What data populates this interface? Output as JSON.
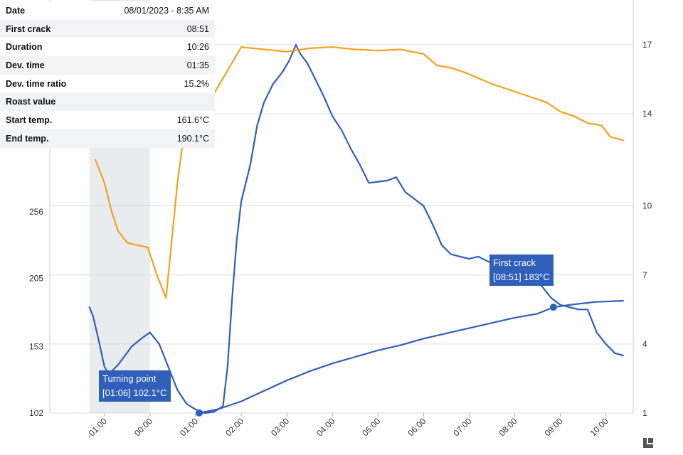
{
  "info": [
    {
      "label": "Date",
      "value": "08/01/2023 - 8:35 AM"
    },
    {
      "label": "First crack",
      "value": "08:51"
    },
    {
      "label": "Duration",
      "value": "10:26"
    },
    {
      "label": "Dev. time",
      "value": "01:35"
    },
    {
      "label": "Dev. time ratio",
      "value": "15.2%"
    },
    {
      "label": "Roast value",
      "value": ""
    },
    {
      "label": "Start temp.",
      "value": "161.6°C"
    },
    {
      "label": "End temp.",
      "value": "190.1°C"
    }
  ],
  "annotations": {
    "turning_point": {
      "title": "Turning point",
      "detail": "[01:06] 102.1°C"
    },
    "first_crack": {
      "title": "First crack",
      "detail": "[08:51] 183°C"
    }
  },
  "colors": {
    "bean_temp": "#2f5fb9",
    "ror": "#2f5fb9",
    "power": "#f5a11c",
    "shade": "#e9ecef",
    "grid": "#dddddd"
  },
  "chart_data": {
    "type": "line",
    "x_unit": "minutes",
    "x_ticks": [
      "-01:00",
      "00:00",
      "01:00",
      "02:00",
      "03:00",
      "04:00",
      "05:00",
      "06:00",
      "07:00",
      "08:00",
      "09:00",
      "10:00"
    ],
    "x_tick_values": [
      -1,
      0,
      1,
      2,
      3,
      4,
      5,
      6,
      7,
      8,
      9,
      10
    ],
    "xlim": [
      -2.2,
      10.6
    ],
    "y_left_ticks": [
      "102",
      "153",
      "205",
      "256"
    ],
    "y_left_tick_values": [
      102,
      153,
      205,
      256
    ],
    "ylim_left": [
      102,
      384
    ],
    "y_right_ticks": [
      "1",
      "4",
      "7",
      "10",
      "14",
      "17"
    ],
    "y_right_tick_values": [
      1,
      4,
      7,
      10,
      14,
      17
    ],
    "ylim_right": [
      1,
      17
    ],
    "grid": true,
    "shaded_region": [
      -1.33,
      0
    ],
    "series": [
      {
        "axis": "left",
        "color": "#2f5fb9",
        "points": [
          [
            1.08,
            102.1
          ],
          [
            1.5,
            105
          ],
          [
            2,
            111
          ],
          [
            2.5,
            119
          ],
          [
            3,
            127
          ],
          [
            3.5,
            134
          ],
          [
            4,
            140
          ],
          [
            4.5,
            145
          ],
          [
            5,
            150
          ],
          [
            5.5,
            154
          ],
          [
            6,
            159
          ],
          [
            6.5,
            163
          ],
          [
            7,
            167
          ],
          [
            7.5,
            171
          ],
          [
            8,
            175
          ],
          [
            8.5,
            178
          ],
          [
            8.85,
            183
          ],
          [
            9.25,
            185
          ],
          [
            9.75,
            187
          ],
          [
            10.38,
            188
          ]
        ]
      },
      {
        "axis": "right",
        "color": "#2f5fb9",
        "points": [
          [
            -1.33,
            5.6
          ],
          [
            -1.25,
            5.2
          ],
          [
            -1.12,
            4.1
          ],
          [
            -1.0,
            3.0
          ],
          [
            -0.9,
            2.7
          ],
          [
            -0.7,
            3.1
          ],
          [
            -0.4,
            3.9
          ],
          [
            -0.15,
            4.3
          ],
          [
            0,
            4.5
          ],
          [
            0.2,
            4.0
          ],
          [
            0.4,
            3.0
          ],
          [
            0.6,
            2.0
          ],
          [
            0.8,
            1.4
          ],
          [
            1.0,
            1.15
          ],
          [
            1.2,
            1.0
          ],
          [
            1.4,
            1.05
          ],
          [
            1.6,
            1.3
          ],
          [
            1.7,
            3.0
          ],
          [
            1.8,
            6.0
          ],
          [
            1.9,
            8.5
          ],
          [
            2.0,
            10.2
          ],
          [
            2.2,
            11.8
          ],
          [
            2.35,
            13.5
          ],
          [
            2.5,
            14.5
          ],
          [
            2.7,
            15.3
          ],
          [
            2.9,
            15.8
          ],
          [
            3.05,
            16.3
          ],
          [
            3.2,
            17.0
          ],
          [
            3.3,
            16.6
          ],
          [
            3.45,
            16.2
          ],
          [
            3.6,
            15.6
          ],
          [
            3.8,
            14.8
          ],
          [
            4.0,
            13.9
          ],
          [
            4.2,
            13.3
          ],
          [
            4.4,
            12.5
          ],
          [
            4.6,
            11.8
          ],
          [
            4.8,
            11.0
          ],
          [
            5.0,
            11.05
          ],
          [
            5.2,
            11.1
          ],
          [
            5.4,
            11.25
          ],
          [
            5.6,
            10.6
          ],
          [
            5.8,
            10.3
          ],
          [
            6.0,
            10.0
          ],
          [
            6.2,
            9.2
          ],
          [
            6.4,
            8.3
          ],
          [
            6.6,
            7.9
          ],
          [
            6.8,
            7.8
          ],
          [
            7.0,
            7.7
          ],
          [
            7.2,
            7.8
          ],
          [
            7.4,
            7.6
          ],
          [
            7.6,
            7.4
          ],
          [
            7.8,
            7.2
          ],
          [
            8.0,
            6.9
          ],
          [
            8.2,
            7.0
          ],
          [
            8.4,
            6.9
          ],
          [
            8.6,
            6.5
          ],
          [
            8.8,
            6.0
          ],
          [
            9.0,
            5.7
          ],
          [
            9.2,
            5.6
          ],
          [
            9.4,
            5.5
          ],
          [
            9.6,
            5.5
          ],
          [
            9.8,
            4.5
          ],
          [
            10.0,
            4.0
          ],
          [
            10.2,
            3.6
          ],
          [
            10.38,
            3.5
          ]
        ]
      },
      {
        "axis": "right",
        "color": "#f5a11c",
        "points": [
          [
            -1.2,
            12.0
          ],
          [
            -1.0,
            11.0
          ],
          [
            -0.85,
            9.8
          ],
          [
            -0.7,
            8.9
          ],
          [
            -0.5,
            8.4
          ],
          [
            -0.3,
            8.3
          ],
          [
            -0.05,
            8.2
          ],
          [
            0.15,
            7.0
          ],
          [
            0.35,
            6.0
          ],
          [
            0.5,
            9.0
          ],
          [
            0.6,
            11.0
          ],
          [
            0.7,
            12.5
          ],
          [
            2.0,
            16.9
          ],
          [
            2.5,
            16.8
          ],
          [
            3.0,
            16.7
          ],
          [
            3.5,
            16.85
          ],
          [
            4.0,
            16.9
          ],
          [
            4.5,
            16.8
          ],
          [
            5.0,
            16.75
          ],
          [
            5.5,
            16.8
          ],
          [
            6.0,
            16.6
          ],
          [
            6.3,
            16.1
          ],
          [
            6.6,
            16.0
          ],
          [
            6.9,
            15.8
          ],
          [
            7.2,
            15.55
          ],
          [
            7.5,
            15.3
          ],
          [
            7.8,
            15.1
          ],
          [
            8.1,
            14.9
          ],
          [
            8.4,
            14.7
          ],
          [
            8.7,
            14.5
          ],
          [
            9.0,
            14.1
          ],
          [
            9.3,
            13.9
          ],
          [
            9.6,
            13.6
          ],
          [
            9.9,
            13.5
          ],
          [
            10.1,
            13.0
          ],
          [
            10.38,
            12.85
          ]
        ]
      }
    ]
  }
}
